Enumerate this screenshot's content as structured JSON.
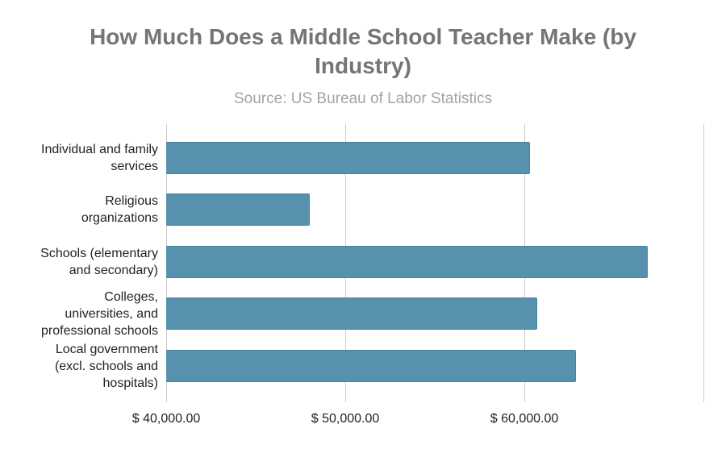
{
  "chart_data": {
    "type": "bar",
    "orientation": "horizontal",
    "title": "How Much Does a Middle School Teacher Make (by Industry)",
    "title_lines": [
      "How Much Does a Middle School Teacher Make (by",
      "Industry)"
    ],
    "subtitle": "Source: US Bureau of Labor Statistics",
    "categories": [
      "Individual and family services",
      "Religious organizations",
      "Schools (elementary and secondary)",
      "Colleges, universities, and professional schools",
      "Local government (excl. schools and hospitals)"
    ],
    "category_lines": [
      [
        "Individual and family",
        "services"
      ],
      [
        "Religious",
        "organizations"
      ],
      [
        "Schools (elementary",
        "and secondary)"
      ],
      [
        "Colleges,",
        "universities, and",
        "professional schools"
      ],
      [
        "Local government",
        "(excl. schools and",
        "hospitals)"
      ]
    ],
    "values": [
      60300,
      48000,
      66900,
      60700,
      62870
    ],
    "xlabel": "",
    "ylabel": "",
    "xlim": [
      40000,
      70000
    ],
    "x_ticks": [
      40000,
      50000,
      60000,
      70000
    ],
    "x_tick_labels": [
      "$ 40,000.00",
      "$ 50,000.00",
      "$ 60,000.00",
      ""
    ],
    "grid": true,
    "legend": "none",
    "bar_color": "#5891ad"
  }
}
